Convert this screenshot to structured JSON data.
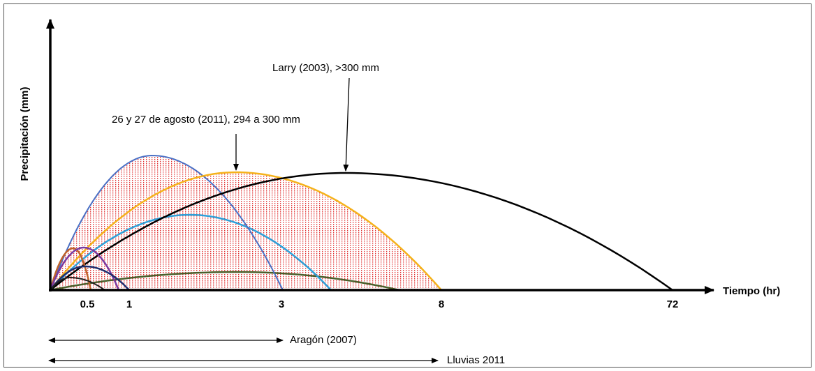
{
  "y_axis_label": "Precipitación (mm)",
  "x_axis_label": "Tiempo (hr)",
  "x_tick_labels": [
    "0.5",
    "1",
    "3",
    "8",
    "72"
  ],
  "annotations": {
    "larry": "Larry (2003), >300 mm",
    "agosto": "26 y 27 de agosto (2011), 294 a 300 mm"
  },
  "ranges": [
    "Aragón (2007)",
    "Lluvias 2011"
  ]
}
